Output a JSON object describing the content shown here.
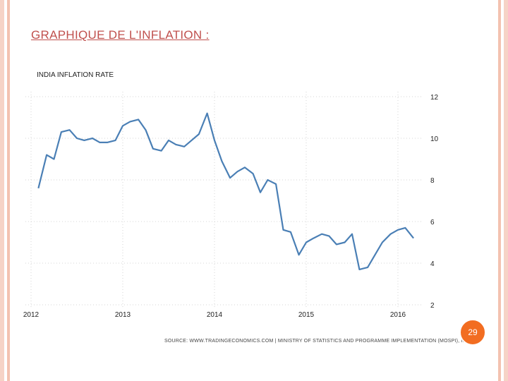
{
  "slide": {
    "title": "GRAPHIQUE DE L'INFLATION :",
    "page_number": "29"
  },
  "colors": {
    "title": "#c0504d",
    "line": "#4a7fb5",
    "badge": "#f26d21"
  },
  "chart_data": {
    "type": "line",
    "title": "INDIA INFLATION RATE",
    "xlabel": "",
    "ylabel": "",
    "x_tick_labels": [
      "2012",
      "2013",
      "2014",
      "2015",
      "2016"
    ],
    "x_range": [
      2012.0,
      2016.2
    ],
    "y_ticks": [
      2,
      4,
      6,
      8,
      10,
      12
    ],
    "ylim": [
      2,
      12
    ],
    "grid": true,
    "source": "SOURCE: WWW.TRADINGECONOMICS.COM | MINISTRY OF STATISTICS AND PROGRAMME IMPLEMENTATION (MOSPI), INDIA",
    "series": [
      {
        "name": "India Inflation Rate",
        "x": [
          2012.08,
          2012.17,
          2012.25,
          2012.33,
          2012.42,
          2012.5,
          2012.58,
          2012.67,
          2012.75,
          2012.83,
          2012.92,
          2013.0,
          2013.08,
          2013.17,
          2013.25,
          2013.33,
          2013.42,
          2013.5,
          2013.58,
          2013.67,
          2013.75,
          2013.83,
          2013.92,
          2014.0,
          2014.08,
          2014.17,
          2014.25,
          2014.33,
          2014.42,
          2014.5,
          2014.58,
          2014.67,
          2014.75,
          2014.83,
          2014.92,
          2015.0,
          2015.08,
          2015.17,
          2015.25,
          2015.33,
          2015.42,
          2015.5,
          2015.58,
          2015.67,
          2015.75,
          2015.83,
          2015.92,
          2016.0,
          2016.08,
          2016.17
        ],
        "values": [
          7.6,
          9.2,
          9.0,
          10.3,
          10.4,
          10.0,
          9.9,
          10.0,
          9.8,
          9.8,
          9.9,
          10.6,
          10.8,
          10.9,
          10.4,
          9.5,
          9.4,
          9.9,
          9.7,
          9.6,
          9.9,
          10.2,
          11.2,
          9.9,
          8.9,
          8.1,
          8.4,
          8.6,
          8.3,
          7.4,
          8.0,
          7.8,
          5.6,
          5.5,
          4.4,
          5.0,
          5.2,
          5.4,
          5.3,
          4.9,
          5.0,
          5.4,
          3.7,
          3.8,
          4.4,
          5.0,
          5.4,
          5.6,
          5.7,
          5.2
        ]
      }
    ]
  }
}
